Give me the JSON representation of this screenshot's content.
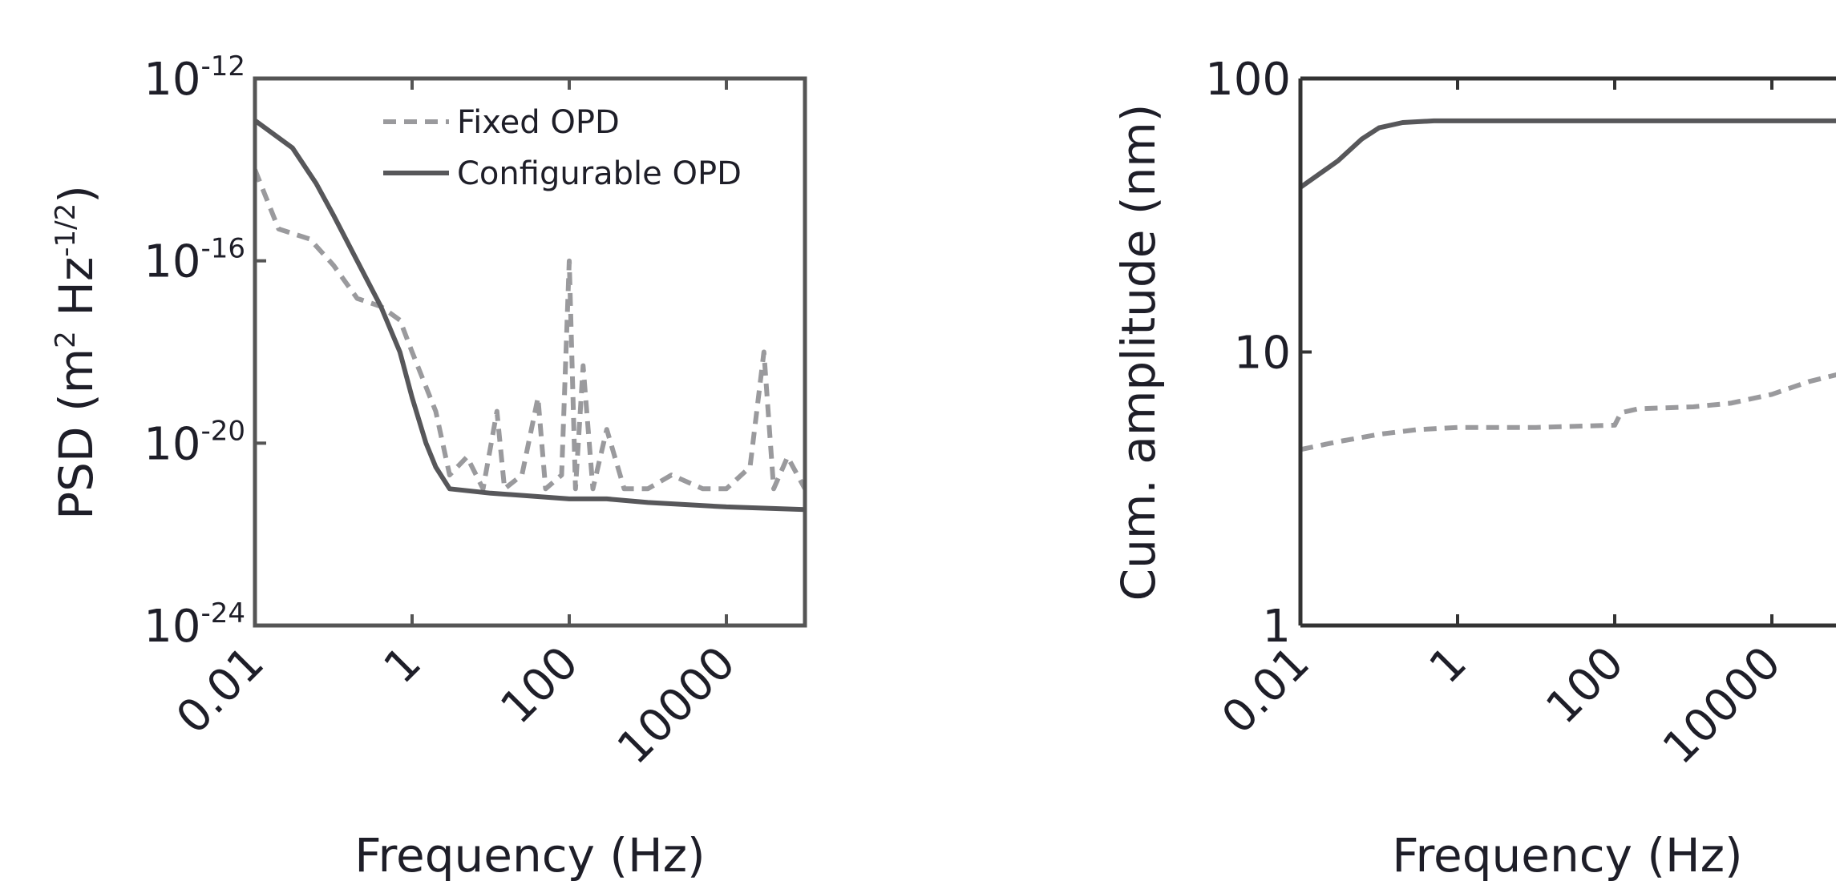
{
  "chart_data": [
    {
      "type": "line",
      "xlabel": "Frequency (Hz)",
      "ylabel_parts": [
        "PSD (m",
        "2",
        " Hz",
        "-1/2",
        ")"
      ],
      "x_scale": "log",
      "y_scale": "log",
      "xlim": [
        0.01,
        100000
      ],
      "ylim": [
        1e-24,
        1e-12
      ],
      "x_ticks": [
        0.01,
        1,
        100,
        10000
      ],
      "x_tick_labels": [
        "0.01",
        "1",
        "100",
        "10000"
      ],
      "y_ticks": [
        1e-24,
        1e-20,
        1e-16,
        1e-12
      ],
      "y_tick_labels": [
        {
          "base": "10",
          "exp": "-24"
        },
        {
          "base": "10",
          "exp": "-20"
        },
        {
          "base": "10",
          "exp": "-16"
        },
        {
          "base": "10",
          "exp": "-12"
        }
      ],
      "legend_position": "top-right",
      "grid": false,
      "series": [
        {
          "name": "Fixed OPD",
          "style": "dashed",
          "color": "#9a9a9d",
          "points": [
            [
              0.01,
              1e-14
            ],
            [
              0.02,
              5e-16
            ],
            [
              0.05,
              3e-16
            ],
            [
              0.1,
              8e-17
            ],
            [
              0.2,
              1.5e-17
            ],
            [
              0.4,
              1e-17
            ],
            [
              0.7,
              5e-18
            ],
            [
              1,
              1e-18
            ],
            [
              2,
              5e-20
            ],
            [
              3,
              2e-21
            ],
            [
              5,
              5e-21
            ],
            [
              8,
              1e-21
            ],
            [
              12,
              5e-20
            ],
            [
              15,
              1e-21
            ],
            [
              25,
              2e-21
            ],
            [
              40,
              1e-19
            ],
            [
              50,
              1e-21
            ],
            [
              80,
              2e-21
            ],
            [
              100,
              1e-16
            ],
            [
              120,
              1e-21
            ],
            [
              150,
              5e-19
            ],
            [
              200,
              1e-21
            ],
            [
              300,
              2e-20
            ],
            [
              500,
              1e-21
            ],
            [
              1000,
              1e-21
            ],
            [
              2000,
              2e-21
            ],
            [
              5000,
              1e-21
            ],
            [
              10000,
              1e-21
            ],
            [
              20000,
              3e-21
            ],
            [
              30000,
              1e-18
            ],
            [
              40000,
              1e-21
            ],
            [
              60000,
              5e-21
            ],
            [
              100000,
              1e-21
            ]
          ]
        },
        {
          "name": "Configurable OPD",
          "style": "solid",
          "color": "#57575a",
          "points": [
            [
              0.01,
              1.2e-13
            ],
            [
              0.03,
              3e-14
            ],
            [
              0.06,
              5e-15
            ],
            [
              0.1,
              1e-15
            ],
            [
              0.2,
              1e-16
            ],
            [
              0.4,
              1e-17
            ],
            [
              0.7,
              1e-18
            ],
            [
              1,
              1e-19
            ],
            [
              1.5,
              1e-20
            ],
            [
              2,
              3e-21
            ],
            [
              3,
              1e-21
            ],
            [
              10,
              8e-22
            ],
            [
              30,
              7e-22
            ],
            [
              100,
              6e-22
            ],
            [
              300,
              6e-22
            ],
            [
              1000,
              5e-22
            ],
            [
              10000,
              4e-22
            ],
            [
              100000,
              3.5e-22
            ]
          ]
        }
      ]
    },
    {
      "type": "line",
      "xlabel": "Frequency (Hz)",
      "ylabel": "Cum. amplitude (nm)",
      "x_scale": "log",
      "y_scale": "log",
      "xlim": [
        0.01,
        100000
      ],
      "ylim": [
        1,
        100
      ],
      "x_ticks": [
        0.01,
        1,
        100,
        10000
      ],
      "x_tick_labels": [
        "0.01",
        "1",
        "100",
        "10000"
      ],
      "y_ticks": [
        1,
        10,
        100
      ],
      "y_tick_labels": [
        "1",
        "10",
        "100"
      ],
      "grid": false,
      "series": [
        {
          "style": "solid",
          "color": "#57575a",
          "points": [
            [
              0.01,
              40
            ],
            [
              0.03,
              50
            ],
            [
              0.06,
              60
            ],
            [
              0.1,
              66
            ],
            [
              0.2,
              69
            ],
            [
              0.5,
              70
            ],
            [
              1,
              70
            ],
            [
              10,
              70
            ],
            [
              100,
              70
            ],
            [
              1000,
              70
            ],
            [
              100000,
              70
            ]
          ]
        },
        {
          "style": "dashed",
          "color": "#9a9a9d",
          "points": [
            [
              0.01,
              4.4
            ],
            [
              0.03,
              4.7
            ],
            [
              0.1,
              5
            ],
            [
              0.3,
              5.2
            ],
            [
              1,
              5.3
            ],
            [
              10,
              5.3
            ],
            [
              100,
              5.4
            ],
            [
              120,
              6
            ],
            [
              200,
              6.2
            ],
            [
              1000,
              6.3
            ],
            [
              3000,
              6.5
            ],
            [
              10000,
              7
            ],
            [
              30000,
              7.8
            ],
            [
              100000,
              8.5
            ]
          ]
        }
      ]
    }
  ]
}
